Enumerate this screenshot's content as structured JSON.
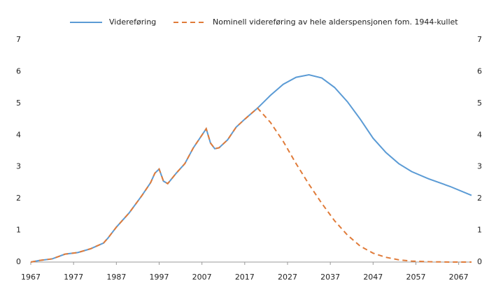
{
  "chart_data": {
    "type": "line",
    "x": [
      1967,
      1969,
      1972,
      1975,
      1978,
      1981,
      1984,
      1985,
      1987,
      1990,
      1993,
      1995,
      1996,
      1997,
      1998,
      1999,
      2001,
      2003,
      2005,
      2007,
      2008,
      2009,
      2010,
      2011,
      2013,
      2015,
      2017,
      2020,
      2023,
      2026,
      2029,
      2032,
      2035,
      2038,
      2041,
      2044,
      2047,
      2050,
      2053,
      2056,
      2060,
      2065,
      2070
    ],
    "series": [
      {
        "name": "Videreføring",
        "color": "#5b9bd5",
        "dash": false,
        "values": [
          0,
          0.05,
          0.1,
          0.25,
          0.3,
          0.42,
          0.6,
          0.75,
          1.1,
          1.55,
          2.1,
          2.5,
          2.8,
          2.93,
          2.55,
          2.47,
          2.8,
          3.1,
          3.6,
          4.0,
          4.2,
          3.75,
          3.57,
          3.6,
          3.85,
          4.25,
          4.5,
          4.85,
          5.25,
          5.6,
          5.82,
          5.9,
          5.8,
          5.5,
          5.05,
          4.5,
          3.9,
          3.45,
          3.1,
          2.85,
          2.62,
          2.38,
          2.1
        ]
      },
      {
        "name": "Nominell videreføring av hele alderspensjonen fom. 1944-kullet",
        "color": "#e07b39",
        "dash": true,
        "values": [
          0,
          0.05,
          0.1,
          0.25,
          0.3,
          0.42,
          0.6,
          0.75,
          1.1,
          1.55,
          2.1,
          2.5,
          2.8,
          2.93,
          2.55,
          2.47,
          2.8,
          3.1,
          3.6,
          4.0,
          4.2,
          3.75,
          3.57,
          3.6,
          3.85,
          4.25,
          4.5,
          4.85,
          4.4,
          3.8,
          3.1,
          2.45,
          1.85,
          1.3,
          0.85,
          0.5,
          0.28,
          0.15,
          0.07,
          0.03,
          0.01,
          0,
          0
        ]
      }
    ],
    "xlim": [
      1967,
      2070
    ],
    "xticks": [
      1967,
      1977,
      1987,
      1997,
      2007,
      2017,
      2027,
      2037,
      2047,
      2057,
      2067
    ],
    "ylim": [
      0,
      7
    ],
    "yticks": [
      0,
      1,
      2,
      3,
      4,
      5,
      6,
      7
    ],
    "right_axis_labels": true,
    "grid": false,
    "legend": "top"
  }
}
